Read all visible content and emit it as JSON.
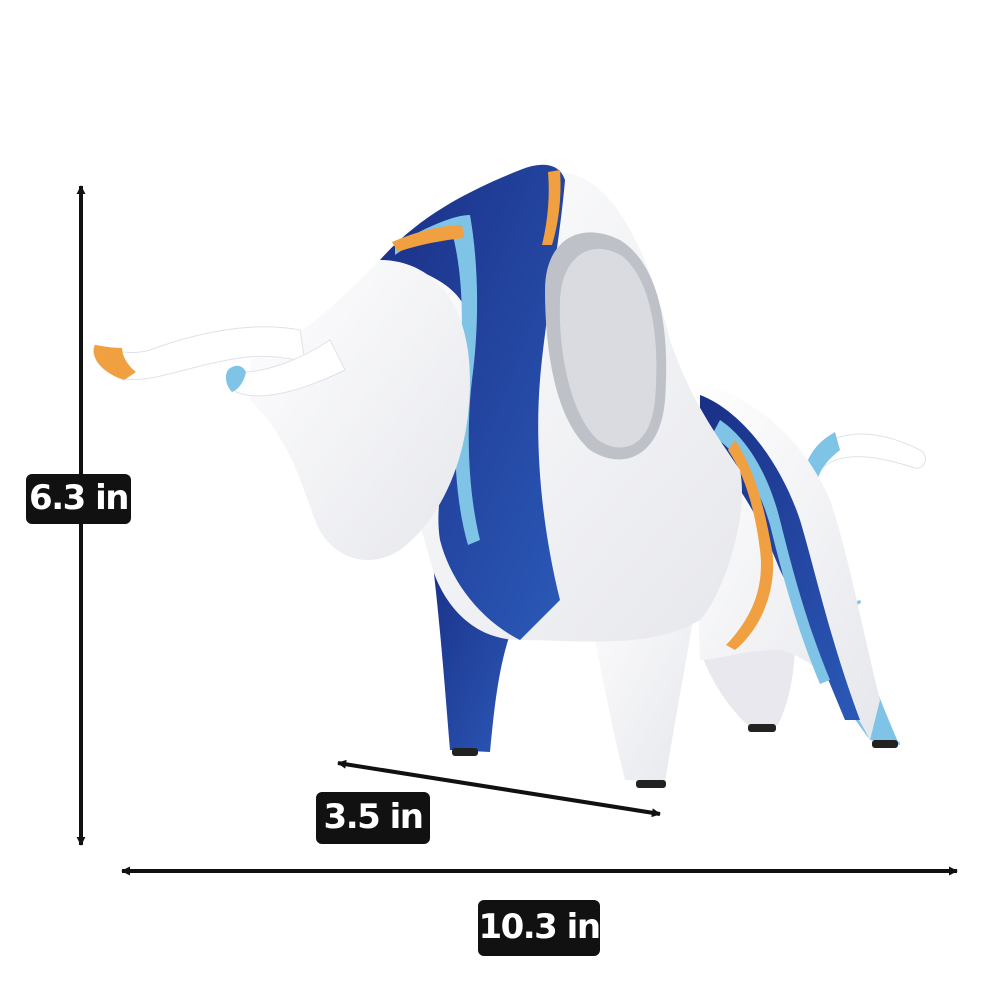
{
  "dimensions": {
    "height_label": "6.3 in",
    "depth_label": "3.5 in",
    "width_label": "10.3 in"
  },
  "colors": {
    "background": "#ffffff",
    "arrow": "#111111",
    "label_bg": "#111111",
    "label_text": "#ffffff",
    "figurine_white": "#f7f7f9",
    "figurine_navy": "#1f3f98",
    "figurine_light_blue": "#7fc4e6",
    "figurine_orange": "#f0a040"
  },
  "subject": {
    "icon": "bull-figurine-icon"
  }
}
